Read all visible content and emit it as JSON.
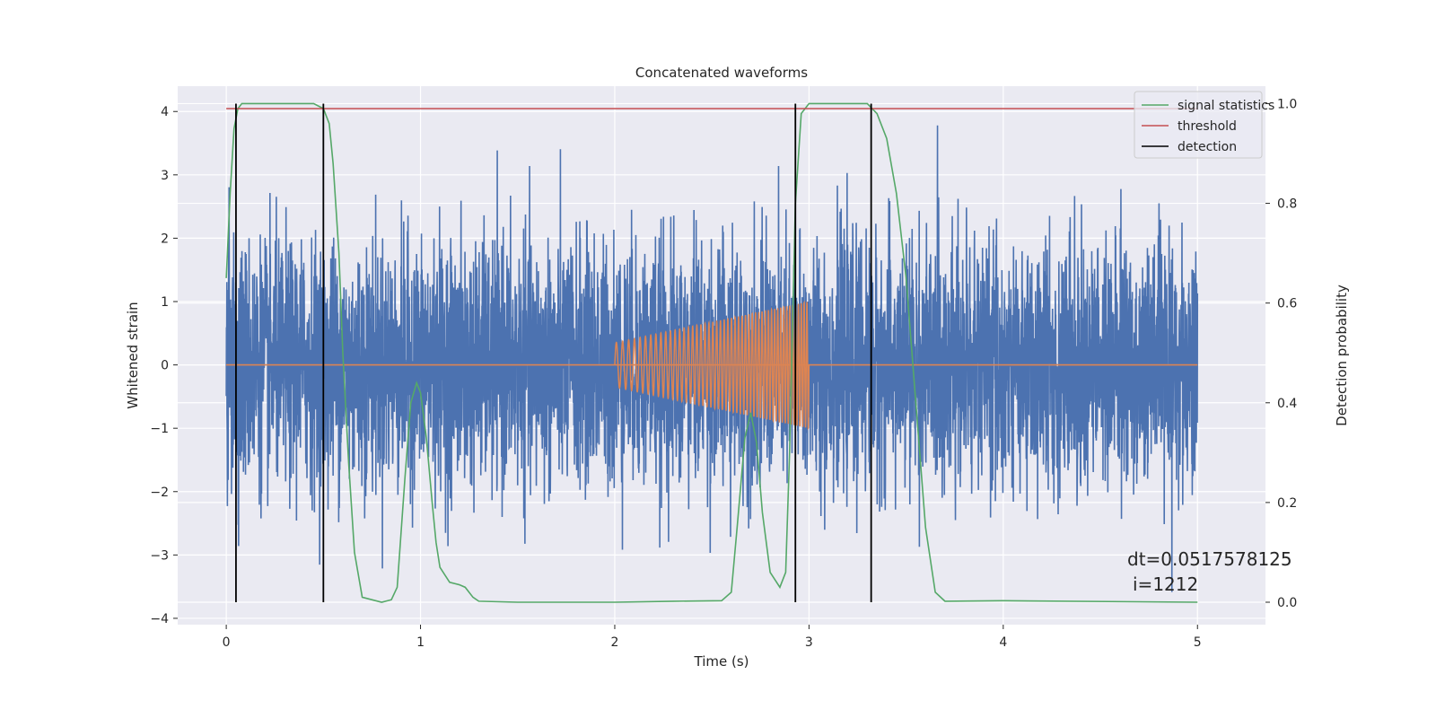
{
  "chart_data": {
    "type": "line",
    "title": "Concatenated waveforms",
    "xlabel": "Time (s)",
    "ylabel": "Whitened strain",
    "y2label": "Detection probability",
    "xlim": [
      -0.25,
      5.35
    ],
    "ylim": [
      -4.1,
      4.4
    ],
    "y2lim": [
      -0.045,
      1.035
    ],
    "xticks": [
      0,
      1,
      2,
      3,
      4,
      5
    ],
    "yticks": [
      -4,
      -3,
      -2,
      -1,
      0,
      1,
      2,
      3,
      4
    ],
    "y2ticks": [
      0.0,
      0.2,
      0.4,
      0.6,
      0.8,
      1.0
    ],
    "xtick_labels": [
      "0",
      "1",
      "2",
      "3",
      "4",
      "5"
    ],
    "ytick_labels": [
      "−4",
      "−3",
      "−2",
      "−1",
      "0",
      "1",
      "2",
      "3",
      "4"
    ],
    "y2tick_labels": [
      "0.0",
      "0.2",
      "0.4",
      "0.6",
      "0.8",
      "1.0"
    ],
    "grid": true,
    "background": "#eaeaf2",
    "legend_position": "top-right",
    "series": [
      {
        "name": "",
        "axis": "left",
        "color": "#4c72b0",
        "kind": "noise",
        "x_range": [
          0,
          5
        ],
        "amplitude_std": 0.95,
        "max_peak": 3.95,
        "min_peak": -3.75
      },
      {
        "name": "",
        "axis": "left",
        "color": "#dd8452",
        "kind": "chirp",
        "x_range": [
          2,
          3
        ],
        "start_amp": 0.35,
        "end_amp": 1.0,
        "cycles": 50,
        "baseline_range": [
          0,
          5
        ]
      },
      {
        "name": "signal statistics",
        "axis": "right",
        "color": "#55a868",
        "x": [
          0.0,
          0.02,
          0.04,
          0.06,
          0.08,
          0.1,
          0.15,
          0.3,
          0.45,
          0.5,
          0.53,
          0.55,
          0.58,
          0.6,
          0.63,
          0.66,
          0.7,
          0.8,
          0.85,
          0.88,
          0.92,
          0.95,
          0.98,
          1.0,
          1.03,
          1.06,
          1.08,
          1.1,
          1.15,
          1.2,
          1.23,
          1.27,
          1.3,
          1.5,
          2.0,
          2.3,
          2.55,
          2.6,
          2.63,
          2.67,
          2.7,
          2.73,
          2.76,
          2.8,
          2.85,
          2.88,
          2.9,
          2.93,
          2.96,
          3.0,
          3.3,
          3.35,
          3.4,
          3.45,
          3.5,
          3.55,
          3.6,
          3.65,
          3.7,
          4.0,
          5.0
        ],
        "y": [
          0.65,
          0.82,
          0.95,
          0.99,
          1.0,
          1.0,
          1.0,
          1.0,
          1.0,
          0.99,
          0.96,
          0.88,
          0.7,
          0.5,
          0.28,
          0.1,
          0.01,
          0.0,
          0.005,
          0.03,
          0.25,
          0.4,
          0.44,
          0.42,
          0.33,
          0.2,
          0.12,
          0.07,
          0.04,
          0.035,
          0.03,
          0.01,
          0.002,
          0.0,
          0.0,
          0.002,
          0.003,
          0.02,
          0.15,
          0.33,
          0.38,
          0.32,
          0.18,
          0.06,
          0.03,
          0.06,
          0.3,
          0.8,
          0.98,
          1.0,
          1.0,
          0.98,
          0.93,
          0.82,
          0.65,
          0.4,
          0.15,
          0.02,
          0.002,
          0.003,
          0.0
        ]
      },
      {
        "name": "threshold",
        "axis": "right",
        "color": "#c44e52",
        "x": [
          0,
          5
        ],
        "y": [
          0.99,
          0.99
        ]
      },
      {
        "name": "detection",
        "axis": "right",
        "color": "#000000",
        "vlines": [
          0.05,
          0.5,
          2.93,
          3.32
        ],
        "y_span": [
          0.0,
          1.0
        ]
      }
    ],
    "annotations": [
      "dt=0.0517578125",
      "i=1212"
    ]
  }
}
